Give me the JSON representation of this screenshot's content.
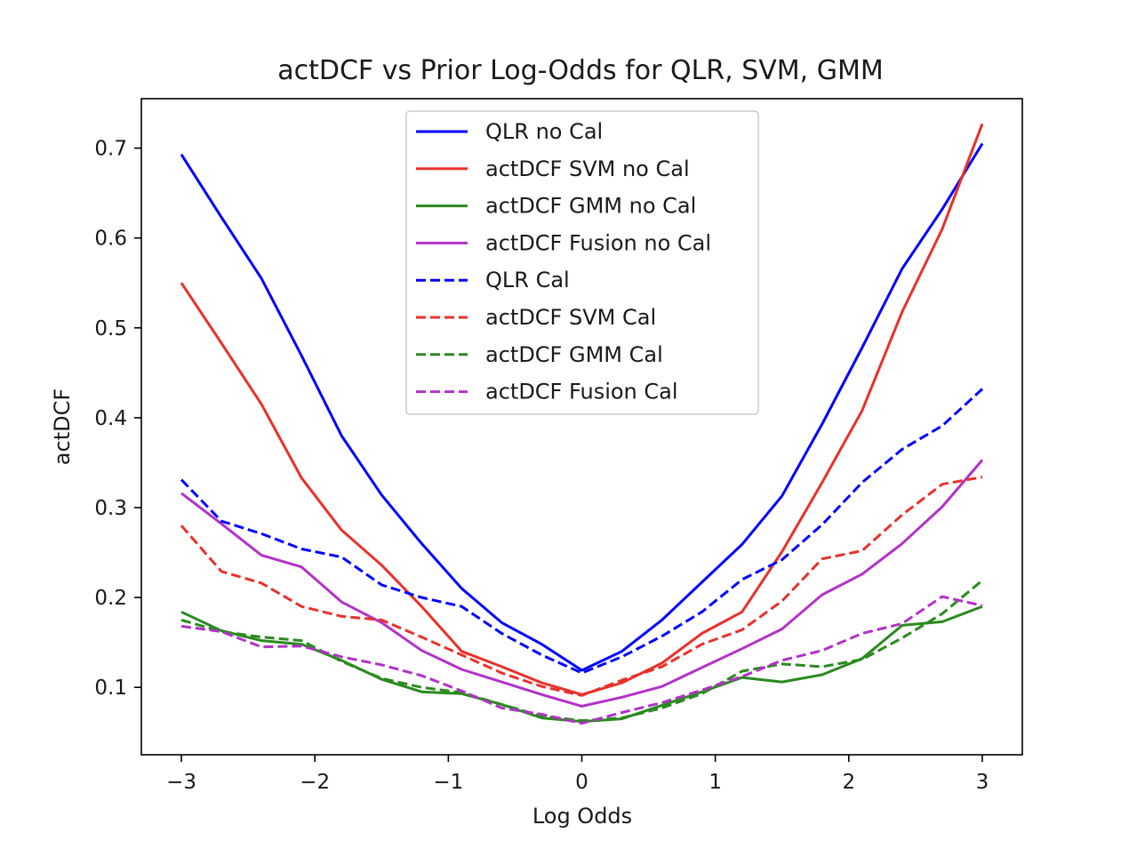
{
  "chart_data": {
    "type": "line",
    "title": "actDCF vs Prior Log-Odds for QLR, SVM, GMM",
    "xlabel": "Log Odds",
    "ylabel": "actDCF",
    "xlim": [
      -3.3,
      3.3
    ],
    "ylim": [
      0.025,
      0.755
    ],
    "xticks": [
      -3,
      -2,
      -1,
      0,
      1,
      2,
      3
    ],
    "xtick_labels": [
      "−3",
      "−2",
      "−1",
      "0",
      "1",
      "2",
      "3"
    ],
    "yticks": [
      0.1,
      0.2,
      0.3,
      0.4,
      0.5,
      0.6,
      0.7
    ],
    "ytick_labels": [
      "0.1",
      "0.2",
      "0.3",
      "0.4",
      "0.5",
      "0.6",
      "0.7"
    ],
    "grid": false,
    "legend_position": "upper-center",
    "x": [
      -3,
      -2.7,
      -2.4,
      -2.1,
      -1.8,
      -1.5,
      -1.2,
      -0.9,
      -0.6,
      -0.3,
      0,
      0.3,
      0.6,
      0.9,
      1.2,
      1.5,
      1.8,
      2.1,
      2.4,
      2.7,
      3
    ],
    "series": [
      {
        "name": "QLR no Cal",
        "color": "#0000ff",
        "dash": "solid",
        "values": [
          0.693,
          0.623,
          0.555,
          0.469,
          0.38,
          0.314,
          0.26,
          0.21,
          0.172,
          0.148,
          0.119,
          0.14,
          0.175,
          0.217,
          0.259,
          0.313,
          0.393,
          0.478,
          0.566,
          0.632,
          0.705
        ]
      },
      {
        "name": "actDCF SVM no Cal",
        "color": "#e8312a",
        "dash": "solid",
        "values": [
          0.55,
          0.483,
          0.415,
          0.333,
          0.275,
          0.236,
          0.19,
          0.14,
          0.123,
          0.105,
          0.092,
          0.105,
          0.127,
          0.16,
          0.184,
          0.251,
          0.328,
          0.408,
          0.518,
          0.61,
          0.727
        ]
      },
      {
        "name": "actDCF GMM no Cal",
        "color": "#2a8a1f",
        "dash": "solid",
        "values": [
          0.184,
          0.163,
          0.152,
          0.148,
          0.13,
          0.109,
          0.095,
          0.093,
          0.081,
          0.066,
          0.062,
          0.065,
          0.08,
          0.095,
          0.111,
          0.106,
          0.114,
          0.132,
          0.169,
          0.173,
          0.19
        ]
      },
      {
        "name": "actDCF Fusion no Cal",
        "color": "#b232c8",
        "dash": "solid",
        "values": [
          0.316,
          0.282,
          0.247,
          0.234,
          0.195,
          0.172,
          0.141,
          0.12,
          0.106,
          0.092,
          0.079,
          0.089,
          0.101,
          0.122,
          0.143,
          0.165,
          0.203,
          0.226,
          0.26,
          0.301,
          0.353
        ]
      },
      {
        "name": "QLR Cal",
        "color": "#0000ff",
        "dash": "dashed",
        "values": [
          0.331,
          0.285,
          0.271,
          0.254,
          0.245,
          0.214,
          0.2,
          0.19,
          0.16,
          0.136,
          0.116,
          0.134,
          0.157,
          0.184,
          0.22,
          0.242,
          0.281,
          0.328,
          0.365,
          0.391,
          0.432
        ]
      },
      {
        "name": "actDCF SVM Cal",
        "color": "#e8312a",
        "dash": "dashed",
        "values": [
          0.28,
          0.229,
          0.216,
          0.19,
          0.179,
          0.175,
          0.156,
          0.136,
          0.116,
          0.101,
          0.091,
          0.108,
          0.123,
          0.148,
          0.164,
          0.196,
          0.243,
          0.252,
          0.292,
          0.326,
          0.334
        ]
      },
      {
        "name": "actDCF GMM Cal",
        "color": "#2a8a1f",
        "dash": "dashed",
        "values": [
          0.175,
          0.162,
          0.156,
          0.152,
          0.129,
          0.11,
          0.1,
          0.094,
          0.081,
          0.068,
          0.063,
          0.066,
          0.077,
          0.093,
          0.118,
          0.126,
          0.123,
          0.131,
          0.155,
          0.182,
          0.219
        ]
      },
      {
        "name": "actDCF Fusion Cal",
        "color": "#b232c8",
        "dash": "dashed",
        "values": [
          0.168,
          0.162,
          0.145,
          0.146,
          0.134,
          0.125,
          0.113,
          0.096,
          0.077,
          0.07,
          0.06,
          0.072,
          0.083,
          0.097,
          0.112,
          0.13,
          0.141,
          0.16,
          0.171,
          0.201,
          0.191
        ]
      }
    ]
  }
}
